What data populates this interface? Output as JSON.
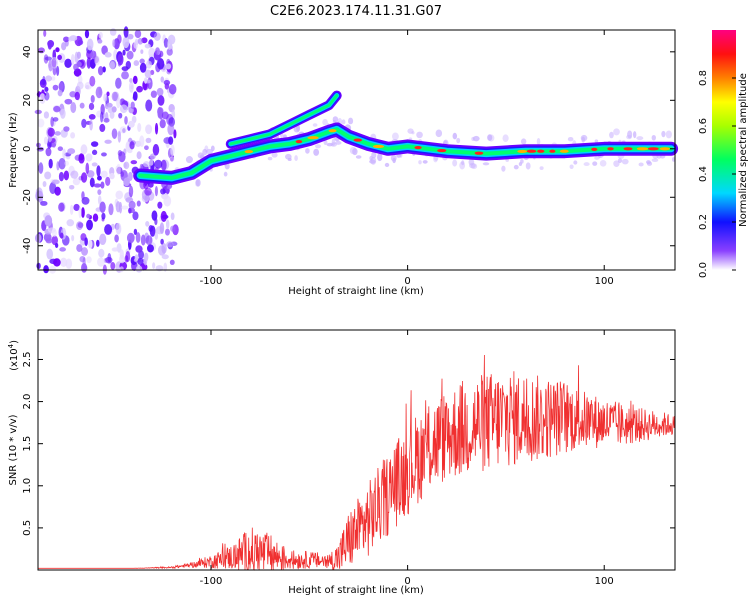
{
  "title": "C2E6.2023.174.11.31.G07",
  "chart_data": [
    {
      "type": "heatmap",
      "title": "C2E6.2023.174.11.31.G07",
      "xlabel": "Height of straight line (km)",
      "ylabel": "Frequency (Hz)",
      "xlim": [
        -188,
        136
      ],
      "ylim": [
        -50,
        49
      ],
      "xticks": [
        -100,
        0,
        100
      ],
      "yticks": [
        -40,
        -20,
        0,
        20,
        40
      ],
      "colorbar": {
        "label": "Normalized spectral amplitude",
        "range": [
          0,
          1
        ],
        "ticks": [
          0.0,
          0.2,
          0.4,
          0.6,
          0.8
        ],
        "colormap": [
          "#ffffff",
          "#6a00ff",
          "#0000ff",
          "#00e5ff",
          "#00ff40",
          "#ffff00",
          "#ff0000",
          "#ff0080"
        ]
      },
      "signal_track": {
        "x": [
          -136,
          -120,
          -110,
          -100,
          -90,
          -80,
          -70,
          -60,
          -50,
          -40,
          -36,
          -30,
          -20,
          -10,
          0,
          20,
          40,
          60,
          80,
          100,
          120,
          134
        ],
        "y": [
          -11,
          -12,
          -10,
          -5,
          -3,
          -1,
          1,
          2,
          4,
          7,
          8,
          5,
          2,
          0,
          1,
          -1,
          -2,
          -1,
          -1,
          0,
          0,
          0
        ]
      },
      "secondary_track": {
        "x": [
          -90,
          -80,
          -70,
          -60,
          -50,
          -40,
          -36
        ],
        "y": [
          2,
          4,
          6,
          10,
          14,
          18,
          22
        ]
      }
    },
    {
      "type": "line",
      "xlabel": "Height of straight line (km)",
      "ylabel": "SNR (10 * v/v)",
      "multiplier": "(x10",
      "multiplier_exp": "4",
      "xlim": [
        -188,
        136
      ],
      "ylim": [
        0,
        2.85
      ],
      "xticks": [
        -100,
        0,
        100
      ],
      "yticks": [
        0.5,
        1.0,
        1.5,
        2.0,
        2.5
      ],
      "color": "#f03030",
      "envelope": {
        "x": [
          -188,
          -140,
          -120,
          -110,
          -100,
          -90,
          -80,
          -70,
          -60,
          -50,
          -40,
          -35,
          -30,
          -20,
          -10,
          0,
          10,
          20,
          30,
          40,
          50,
          60,
          70,
          80,
          90,
          100,
          110,
          120,
          130,
          136
        ],
        "mean": [
          0.02,
          0.02,
          0.03,
          0.06,
          0.1,
          0.15,
          0.22,
          0.18,
          0.12,
          0.12,
          0.1,
          0.15,
          0.35,
          0.6,
          0.9,
          1.2,
          1.45,
          1.6,
          1.7,
          1.75,
          1.8,
          1.8,
          1.8,
          1.82,
          1.78,
          1.75,
          1.72,
          1.72,
          1.73,
          1.72
        ],
        "amp": [
          0.0,
          0.0,
          0.01,
          0.03,
          0.08,
          0.15,
          0.3,
          0.25,
          0.12,
          0.1,
          0.1,
          0.2,
          0.35,
          0.45,
          0.5,
          0.55,
          0.55,
          0.55,
          0.6,
          0.6,
          0.6,
          0.55,
          0.5,
          0.45,
          0.35,
          0.3,
          0.25,
          0.2,
          0.15,
          0.12
        ]
      }
    }
  ]
}
